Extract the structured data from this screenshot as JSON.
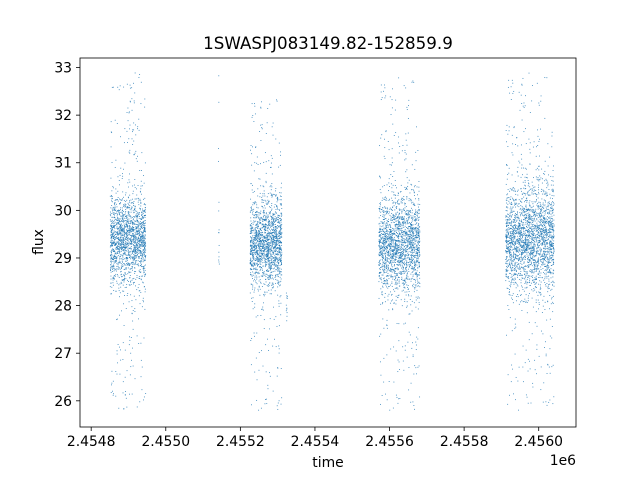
{
  "chart_data": {
    "type": "scatter",
    "title": "1SWASPJ083149.82-152859.9",
    "xlabel": "time",
    "ylabel": "flux",
    "x_offset_label": "1e6",
    "xlim": [
      2454770,
      2456100
    ],
    "ylim": [
      25.45,
      33.2
    ],
    "grid": false,
    "point_color": "#1f77b4",
    "x_ticks": [
      2454800,
      2455000,
      2455200,
      2455400,
      2455600,
      2455800,
      2456000
    ],
    "x_tick_labels": [
      "2.4548",
      "2.4550",
      "2.4552",
      "2.4554",
      "2.4556",
      "2.4558",
      "2.4560"
    ],
    "y_ticks": [
      26,
      27,
      28,
      29,
      30,
      31,
      32,
      33
    ],
    "y_tick_labels": [
      "26",
      "27",
      "28",
      "29",
      "30",
      "31",
      "32",
      "33"
    ],
    "segments": [
      {
        "x_start": 2454850,
        "x_end": 2454945,
        "flux_center": 29.4,
        "core_spread": 0.45,
        "outlier_low": 25.8,
        "outlier_high": 32.9,
        "points": 1800
      },
      {
        "x_start": 2455140,
        "x_end": 2455143,
        "flux_center": 30.5,
        "core_spread": 1.5,
        "outlier_low": 28.8,
        "outlier_high": 32.9,
        "points": 15
      },
      {
        "x_start": 2455225,
        "x_end": 2455310,
        "flux_center": 29.3,
        "core_spread": 0.45,
        "outlier_low": 25.8,
        "outlier_high": 32.4,
        "points": 1700
      },
      {
        "x_start": 2455322,
        "x_end": 2455325,
        "flux_center": 28.0,
        "core_spread": 0.25,
        "outlier_low": 27.6,
        "outlier_high": 28.3,
        "points": 12
      },
      {
        "x_start": 2455570,
        "x_end": 2455680,
        "flux_center": 29.3,
        "core_spread": 0.5,
        "outlier_low": 25.8,
        "outlier_high": 32.8,
        "points": 2000
      },
      {
        "x_start": 2455910,
        "x_end": 2456040,
        "flux_center": 29.4,
        "core_spread": 0.55,
        "outlier_low": 25.8,
        "outlier_high": 32.9,
        "points": 2400
      }
    ]
  }
}
